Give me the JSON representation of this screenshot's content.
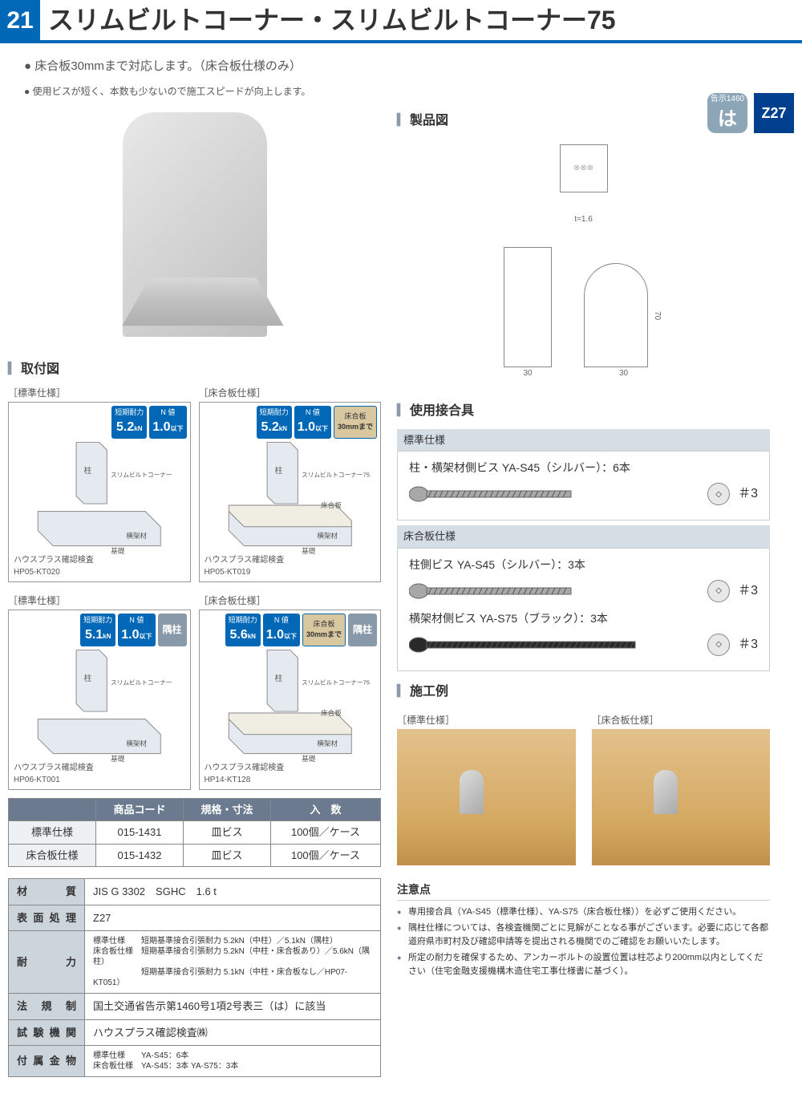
{
  "page_number": "21",
  "title": "スリムビルトコーナー・スリムビルトコーナー75",
  "feature1": "● 床合板30mmまで対応します。（床合板仕様のみ）",
  "feature2": "● 使用ビスが短く、本数も少ないので施工スピードが向上します。",
  "badge_ha_top": "告示1460",
  "badge_ha": "は",
  "badge_z": "Z27",
  "sec_mount": "取付図",
  "sec_product": "製品図",
  "sec_fastener": "使用接合具",
  "sec_example": "施工例",
  "label_std": "［標準仕様］",
  "label_floor": "［床合板仕様］",
  "drawings": [
    {
      "spec": "std",
      "tanki": "5.2",
      "nval": "1.0",
      "floor": "",
      "corner": "",
      "caption": "ハウスプラス確認検査\nHP05-KT020",
      "product": "スリムビルトコーナー"
    },
    {
      "spec": "floor",
      "tanki": "5.2",
      "nval": "1.0",
      "floor": "30mmまで",
      "corner": "",
      "caption": "ハウスプラス確認検査\nHP05-KT019",
      "product": "スリムビルトコーナー75"
    },
    {
      "spec": "std",
      "tanki": "5.1",
      "nval": "1.0",
      "floor": "",
      "corner": "隅柱",
      "caption": "ハウスプラス確認検査\nHP06-KT001",
      "product": "スリムビルトコーナー"
    },
    {
      "spec": "floor",
      "tanki": "5.6",
      "nval": "1.0",
      "floor": "30mmまで",
      "corner": "隅柱",
      "caption": "ハウスプラス確認検査\nHP14-KT128",
      "product": "スリムビルトコーナー75"
    }
  ],
  "badge_labels": {
    "tanki": "短期耐力",
    "nval": "N 値",
    "floor": "床合板",
    "corner": "隅柱",
    "kn": "kN",
    "below": "以下"
  },
  "iso_labels": {
    "pillar": "柱",
    "yoko": "横架材",
    "kiso": "基礎",
    "floor": "床合板"
  },
  "prod_table": {
    "headers": [
      "",
      "商品コード",
      "規格・寸法",
      "入　数"
    ],
    "rows": [
      [
        "標準仕様",
        "015-1431",
        "皿ビス",
        "100個／ケース"
      ],
      [
        "床合板仕様",
        "015-1432",
        "皿ビス",
        "100個／ケース"
      ]
    ]
  },
  "spec_table": [
    {
      "k": "材　　質",
      "v": "JIS G 3302　SGHC　1.6 t"
    },
    {
      "k": "表面処理",
      "v": "Z27"
    },
    {
      "k": "耐　　力",
      "v": "標準仕様　　短期基準接合引張耐力  5.2kN（中柱）／5.1kN（隅柱）\n床合板仕様　短期基準接合引張耐力  5.2kN（中柱・床合板あり）／5.6kN（隅柱）\n　　　　　　短期基準接合引張耐力  5.1kN（中柱・床合板なし／HP07-KT051）",
      "small": true
    },
    {
      "k": "法 規 制",
      "v": "国土交通省告示第1460号1項2号表三（は）に該当"
    },
    {
      "k": "試験機関",
      "v": "ハウスプラス確認検査㈱"
    },
    {
      "k": "付属金物",
      "v": "標準仕様　　YA-S45：6本\n床合板仕様　YA-S45：3本 YA-S75：3本",
      "small": true
    }
  ],
  "tech_dims": {
    "t": "t=1.6",
    "w1": "30",
    "w2": "30",
    "h": "70"
  },
  "fasteners": {
    "std_head": "標準仕様",
    "floor_head": "床合板仕様",
    "std_line": {
      "pre": "柱・横架材側ビス ",
      "name": "YA-S45（シルバー）：6本",
      "drive": "＃3",
      "color": "#a8a8a8"
    },
    "floor_line1": {
      "pre": "柱側ビス ",
      "name": "YA-S45（シルバー）：3本",
      "drive": "＃3",
      "color": "#a8a8a8"
    },
    "floor_line2": {
      "pre": "横架材側ビス ",
      "name": "YA-S75（ブラック）：3本",
      "drive": "＃3",
      "color": "#2a2a2a",
      "long": true
    }
  },
  "notes_head": "注意点",
  "notes": [
    "専用接合具（YA-S45（標準仕様）、YA-S75（床合板仕様））を必ずご使用ください。",
    "隅柱仕様については、各検査機関ごとに見解がことなる事がございます。必要に応じて各都道府県市町村及び確認申請等を提出される機関でのご確認をお願いいたします。",
    "所定の耐力を確保するため、アンカーボルトの設置位置は柱芯より200mm以内としてください（住宅金融支援機構木造住宅工事仕様書に基づく）。"
  ]
}
